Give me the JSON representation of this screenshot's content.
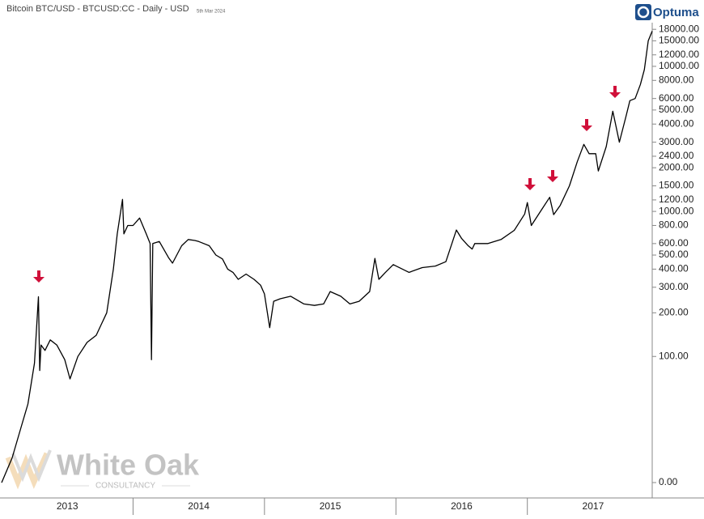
{
  "chart_data": {
    "type": "line",
    "title": "Bitcoin BTC/USD - BTCUSD:CC - Daily - USD",
    "subtitle": "5th Mar 2024",
    "brand": "Optuma",
    "watermark": {
      "name": "White Oak",
      "sub": "CONSULTANCY"
    },
    "color": "#000000",
    "log_scale": true,
    "xlim": [
      2013,
      2017.95
    ],
    "xticks": [
      {
        "value": 2013,
        "label": "2013"
      },
      {
        "value": 2014,
        "label": "2014"
      },
      {
        "value": 2015,
        "label": "2015"
      },
      {
        "value": 2016,
        "label": "2016"
      },
      {
        "value": 2017,
        "label": "2017"
      }
    ],
    "ylim": [
      11,
      20000
    ],
    "yticks": [
      {
        "value": 18000,
        "label": "18000.00"
      },
      {
        "value": 15000,
        "label": "15000.00"
      },
      {
        "value": 12000,
        "label": "12000.00"
      },
      {
        "value": 10000,
        "label": "10000.00"
      },
      {
        "value": 8000,
        "label": "8000.00"
      },
      {
        "value": 6000,
        "label": "6000.00"
      },
      {
        "value": 5000,
        "label": "5000.00"
      },
      {
        "value": 4000,
        "label": "4000.00"
      },
      {
        "value": 3000,
        "label": "3000.00"
      },
      {
        "value": 2400,
        "label": "2400.00"
      },
      {
        "value": 2000,
        "label": "2000.00"
      },
      {
        "value": 1500,
        "label": "1500.00"
      },
      {
        "value": 1200,
        "label": "1200.00"
      },
      {
        "value": 1000,
        "label": "1000.00"
      },
      {
        "value": 800,
        "label": "800.00"
      },
      {
        "value": 600,
        "label": "600.00"
      },
      {
        "value": 500,
        "label": "500.00"
      },
      {
        "value": 400,
        "label": "400.00"
      },
      {
        "value": 300,
        "label": "300.00"
      },
      {
        "value": 200,
        "label": "200.00"
      },
      {
        "value": 100,
        "label": "100.00"
      },
      {
        "value": 0,
        "label": "0.00"
      }
    ],
    "x": [
      2013.0,
      2013.08,
      2013.15,
      2013.2,
      2013.25,
      2013.28,
      2013.29,
      2013.3,
      2013.33,
      2013.37,
      2013.42,
      2013.48,
      2013.52,
      2013.58,
      2013.65,
      2013.72,
      2013.8,
      2013.85,
      2013.88,
      2013.92,
      2013.93,
      2013.96,
      2014.0,
      2014.05,
      2014.1,
      2014.13,
      2014.14,
      2014.15,
      2014.2,
      2014.27,
      2014.3,
      2014.37,
      2014.42,
      2014.47,
      2014.5,
      2014.58,
      2014.63,
      2014.68,
      2014.72,
      2014.76,
      2014.8,
      2014.86,
      2014.92,
      2014.97,
      2015.0,
      2015.04,
      2015.07,
      2015.12,
      2015.2,
      2015.3,
      2015.38,
      2015.45,
      2015.5,
      2015.58,
      2015.65,
      2015.72,
      2015.8,
      2015.84,
      2015.87,
      2015.92,
      2015.98,
      2016.05,
      2016.1,
      2016.2,
      2016.3,
      2016.38,
      2016.46,
      2016.5,
      2016.55,
      2016.58,
      2016.6,
      2016.7,
      2016.8,
      2016.9,
      2016.98,
      2017.0,
      2017.03,
      2017.1,
      2017.17,
      2017.2,
      2017.25,
      2017.32,
      2017.38,
      2017.43,
      2017.47,
      2017.52,
      2017.54,
      2017.6,
      2017.65,
      2017.7,
      2017.75,
      2017.78,
      2017.82,
      2017.86,
      2017.89,
      2017.92,
      2017.95
    ],
    "values": [
      13.5,
      20,
      33,
      47,
      90,
      258,
      80,
      120,
      110,
      130,
      120,
      95,
      70,
      100,
      125,
      140,
      200,
      400,
      700,
      1210,
      700,
      800,
      800,
      900,
      700,
      600,
      95,
      600,
      620,
      480,
      440,
      580,
      640,
      630,
      620,
      580,
      500,
      470,
      400,
      380,
      340,
      370,
      340,
      310,
      270,
      158,
      240,
      250,
      260,
      230,
      225,
      230,
      280,
      260,
      230,
      240,
      280,
      474,
      340,
      380,
      430,
      400,
      380,
      410,
      420,
      450,
      744,
      650,
      580,
      550,
      600,
      600,
      640,
      740,
      960,
      1150,
      800,
      1000,
      1250,
      950,
      1100,
      1500,
      2200,
      2900,
      2500,
      2500,
      1900,
      2800,
      4900,
      3000,
      4500,
      5800,
      6000,
      7500,
      9500,
      15000,
      17500
    ]
  }
}
